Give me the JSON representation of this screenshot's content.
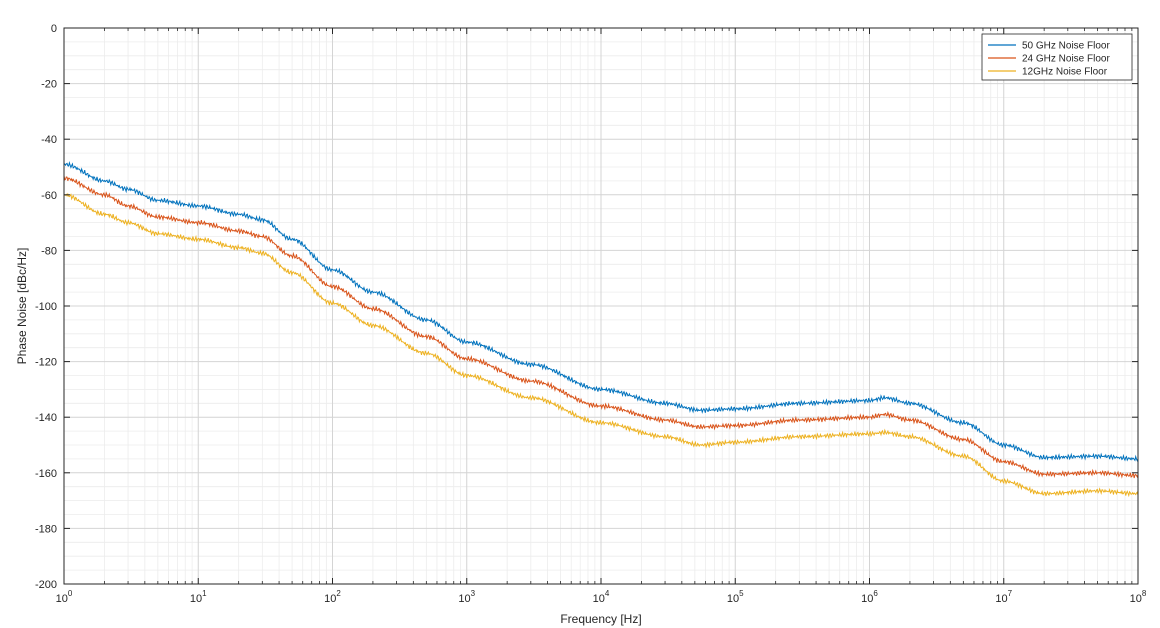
{
  "chart_data": {
    "type": "line",
    "xscale": "log",
    "xlim": [
      1,
      100000000
    ],
    "ylim": [
      -200,
      0
    ],
    "grid": true,
    "legend_position": "top-right",
    "xlabel": "Frequency [Hz]",
    "ylabel": "Phase Noise [dBc/Hz]",
    "x_tick_labels": [
      {
        "base": "10",
        "exp": "0"
      },
      {
        "base": "10",
        "exp": "1"
      },
      {
        "base": "10",
        "exp": "2"
      },
      {
        "base": "10",
        "exp": "3"
      },
      {
        "base": "10",
        "exp": "4"
      },
      {
        "base": "10",
        "exp": "5"
      },
      {
        "base": "10",
        "exp": "6"
      },
      {
        "base": "10",
        "exp": "7"
      },
      {
        "base": "10",
        "exp": "8"
      }
    ],
    "y_ticks": [
      "0",
      "-20",
      "-40",
      "-60",
      "-80",
      "-100",
      "-120",
      "-140",
      "-160",
      "-180",
      "-200"
    ],
    "x": [
      1,
      2,
      3,
      5,
      10,
      20,
      30,
      50,
      100,
      200,
      500,
      1000,
      3000,
      10000,
      30000,
      55000,
      100000,
      300000,
      1000000,
      1300000,
      2000000,
      5000000,
      10000000,
      20000000,
      50000000,
      100000000
    ],
    "series": [
      {
        "name": "50 GHz Noise Floor",
        "color": "#0072BD",
        "values": [
          -49,
          -55,
          -58,
          -62,
          -64,
          -67,
          -69,
          -76,
          -87,
          -95,
          -105,
          -113,
          -121,
          -130,
          -135,
          -137.5,
          -137,
          -135,
          -134,
          -133,
          -135,
          -142,
          -150,
          -154.5,
          -154,
          -155
        ]
      },
      {
        "name": "24 GHz Noise Floor",
        "color": "#D95319",
        "values": [
          -54,
          -60,
          -64,
          -68,
          -70,
          -73,
          -75,
          -82,
          -93,
          -101,
          -111,
          -119,
          -127,
          -136,
          -141,
          -143.5,
          -143,
          -141,
          -140,
          -139,
          -141,
          -148,
          -156,
          -160.5,
          -160,
          -161
        ]
      },
      {
        "name": "12GHz Noise Floor",
        "color": "#EDB120",
        "values": [
          -60,
          -67,
          -70,
          -74,
          -76,
          -79,
          -81,
          -88,
          -99,
          -107,
          -117,
          -125,
          -133,
          -142,
          -147,
          -150,
          -149,
          -147,
          -146,
          -145.5,
          -147,
          -154,
          -163,
          -167.5,
          -166.5,
          -167.5
        ]
      }
    ]
  }
}
